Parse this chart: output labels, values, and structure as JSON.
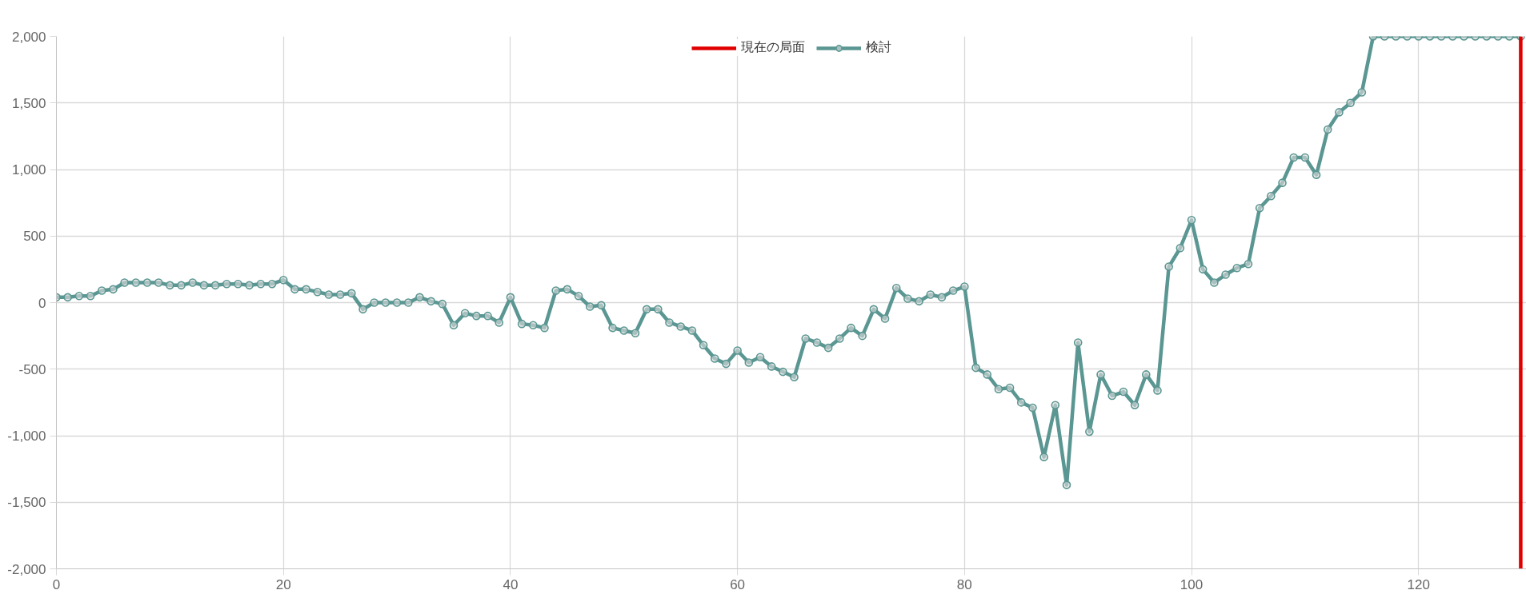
{
  "chart_data": {
    "type": "line",
    "xlim": [
      0,
      129.5
    ],
    "xticks": [
      0,
      20,
      40,
      60,
      80,
      100,
      120
    ],
    "ylim": [
      -2000,
      2000
    ],
    "yticks": [
      {
        "value": -2000,
        "label": "-2,000"
      },
      {
        "value": -1500,
        "label": "-1,500"
      },
      {
        "value": -1000,
        "label": "-1,000"
      },
      -500,
      0,
      500,
      {
        "value": 1000,
        "label": "1,000"
      },
      {
        "value": 1500,
        "label": "1,500"
      },
      {
        "value": 2000,
        "label": "2,000"
      }
    ],
    "grid": true,
    "legend": "top",
    "marker": "circle",
    "line_style": "solid",
    "x": [
      0,
      1,
      2,
      3,
      4,
      5,
      6,
      7,
      8,
      9,
      10,
      11,
      12,
      13,
      14,
      15,
      16,
      17,
      18,
      19,
      20,
      21,
      22,
      23,
      24,
      25,
      26,
      27,
      28,
      29,
      30,
      31,
      32,
      33,
      34,
      35,
      36,
      37,
      38,
      39,
      40,
      41,
      42,
      43,
      44,
      45,
      46,
      47,
      48,
      49,
      50,
      51,
      52,
      53,
      54,
      55,
      56,
      57,
      58,
      59,
      60,
      61,
      62,
      63,
      64,
      65,
      66,
      67,
      68,
      69,
      70,
      71,
      72,
      73,
      74,
      75,
      76,
      77,
      78,
      79,
      80,
      81,
      82,
      83,
      84,
      85,
      86,
      87,
      88,
      89,
      90,
      91,
      92,
      93,
      94,
      95,
      96,
      97,
      98,
      99,
      100,
      101,
      102,
      103,
      104,
      105,
      106,
      107,
      108,
      109,
      110,
      111,
      112,
      113,
      114,
      115,
      116,
      117,
      118,
      119,
      120,
      121,
      122,
      123,
      124,
      125,
      126,
      127,
      128,
      129
    ],
    "series": [
      {
        "name": "現在の局面",
        "color": "#e00000",
        "x": [
          129,
          129
        ],
        "values": [
          -2000,
          2000
        ],
        "marker": "none"
      },
      {
        "name": "検討",
        "color": "#5a9692",
        "values": [
          40,
          40,
          50,
          50,
          90,
          100,
          150,
          150,
          150,
          150,
          130,
          130,
          150,
          130,
          130,
          140,
          140,
          130,
          140,
          140,
          170,
          100,
          100,
          80,
          60,
          60,
          70,
          -50,
          0,
          0,
          0,
          0,
          40,
          10,
          -10,
          -170,
          -80,
          -100,
          -100,
          -150,
          40,
          -160,
          -170,
          -190,
          90,
          100,
          50,
          -30,
          -20,
          -190,
          -210,
          -230,
          -50,
          -50,
          -150,
          -180,
          -210,
          -320,
          -420,
          -460,
          -360,
          -450,
          -410,
          -480,
          -520,
          -560,
          -270,
          -300,
          -340,
          -270,
          -190,
          -250,
          -50,
          -120,
          110,
          30,
          10,
          60,
          40,
          90,
          120,
          -490,
          -540,
          -650,
          -640,
          -750,
          -790,
          -1160,
          -770,
          -1370,
          -300,
          -970,
          -540,
          -700,
          -670,
          -770,
          -540,
          -660,
          270,
          410,
          620,
          250,
          150,
          210,
          260,
          290,
          710,
          800,
          900,
          1090,
          1090,
          960,
          1300,
          1430,
          1500,
          1580,
          2000,
          2000,
          2000,
          2000,
          2000,
          2000,
          2000,
          2000,
          2000,
          2000,
          2000,
          2000,
          2000,
          2000
        ]
      }
    ]
  }
}
